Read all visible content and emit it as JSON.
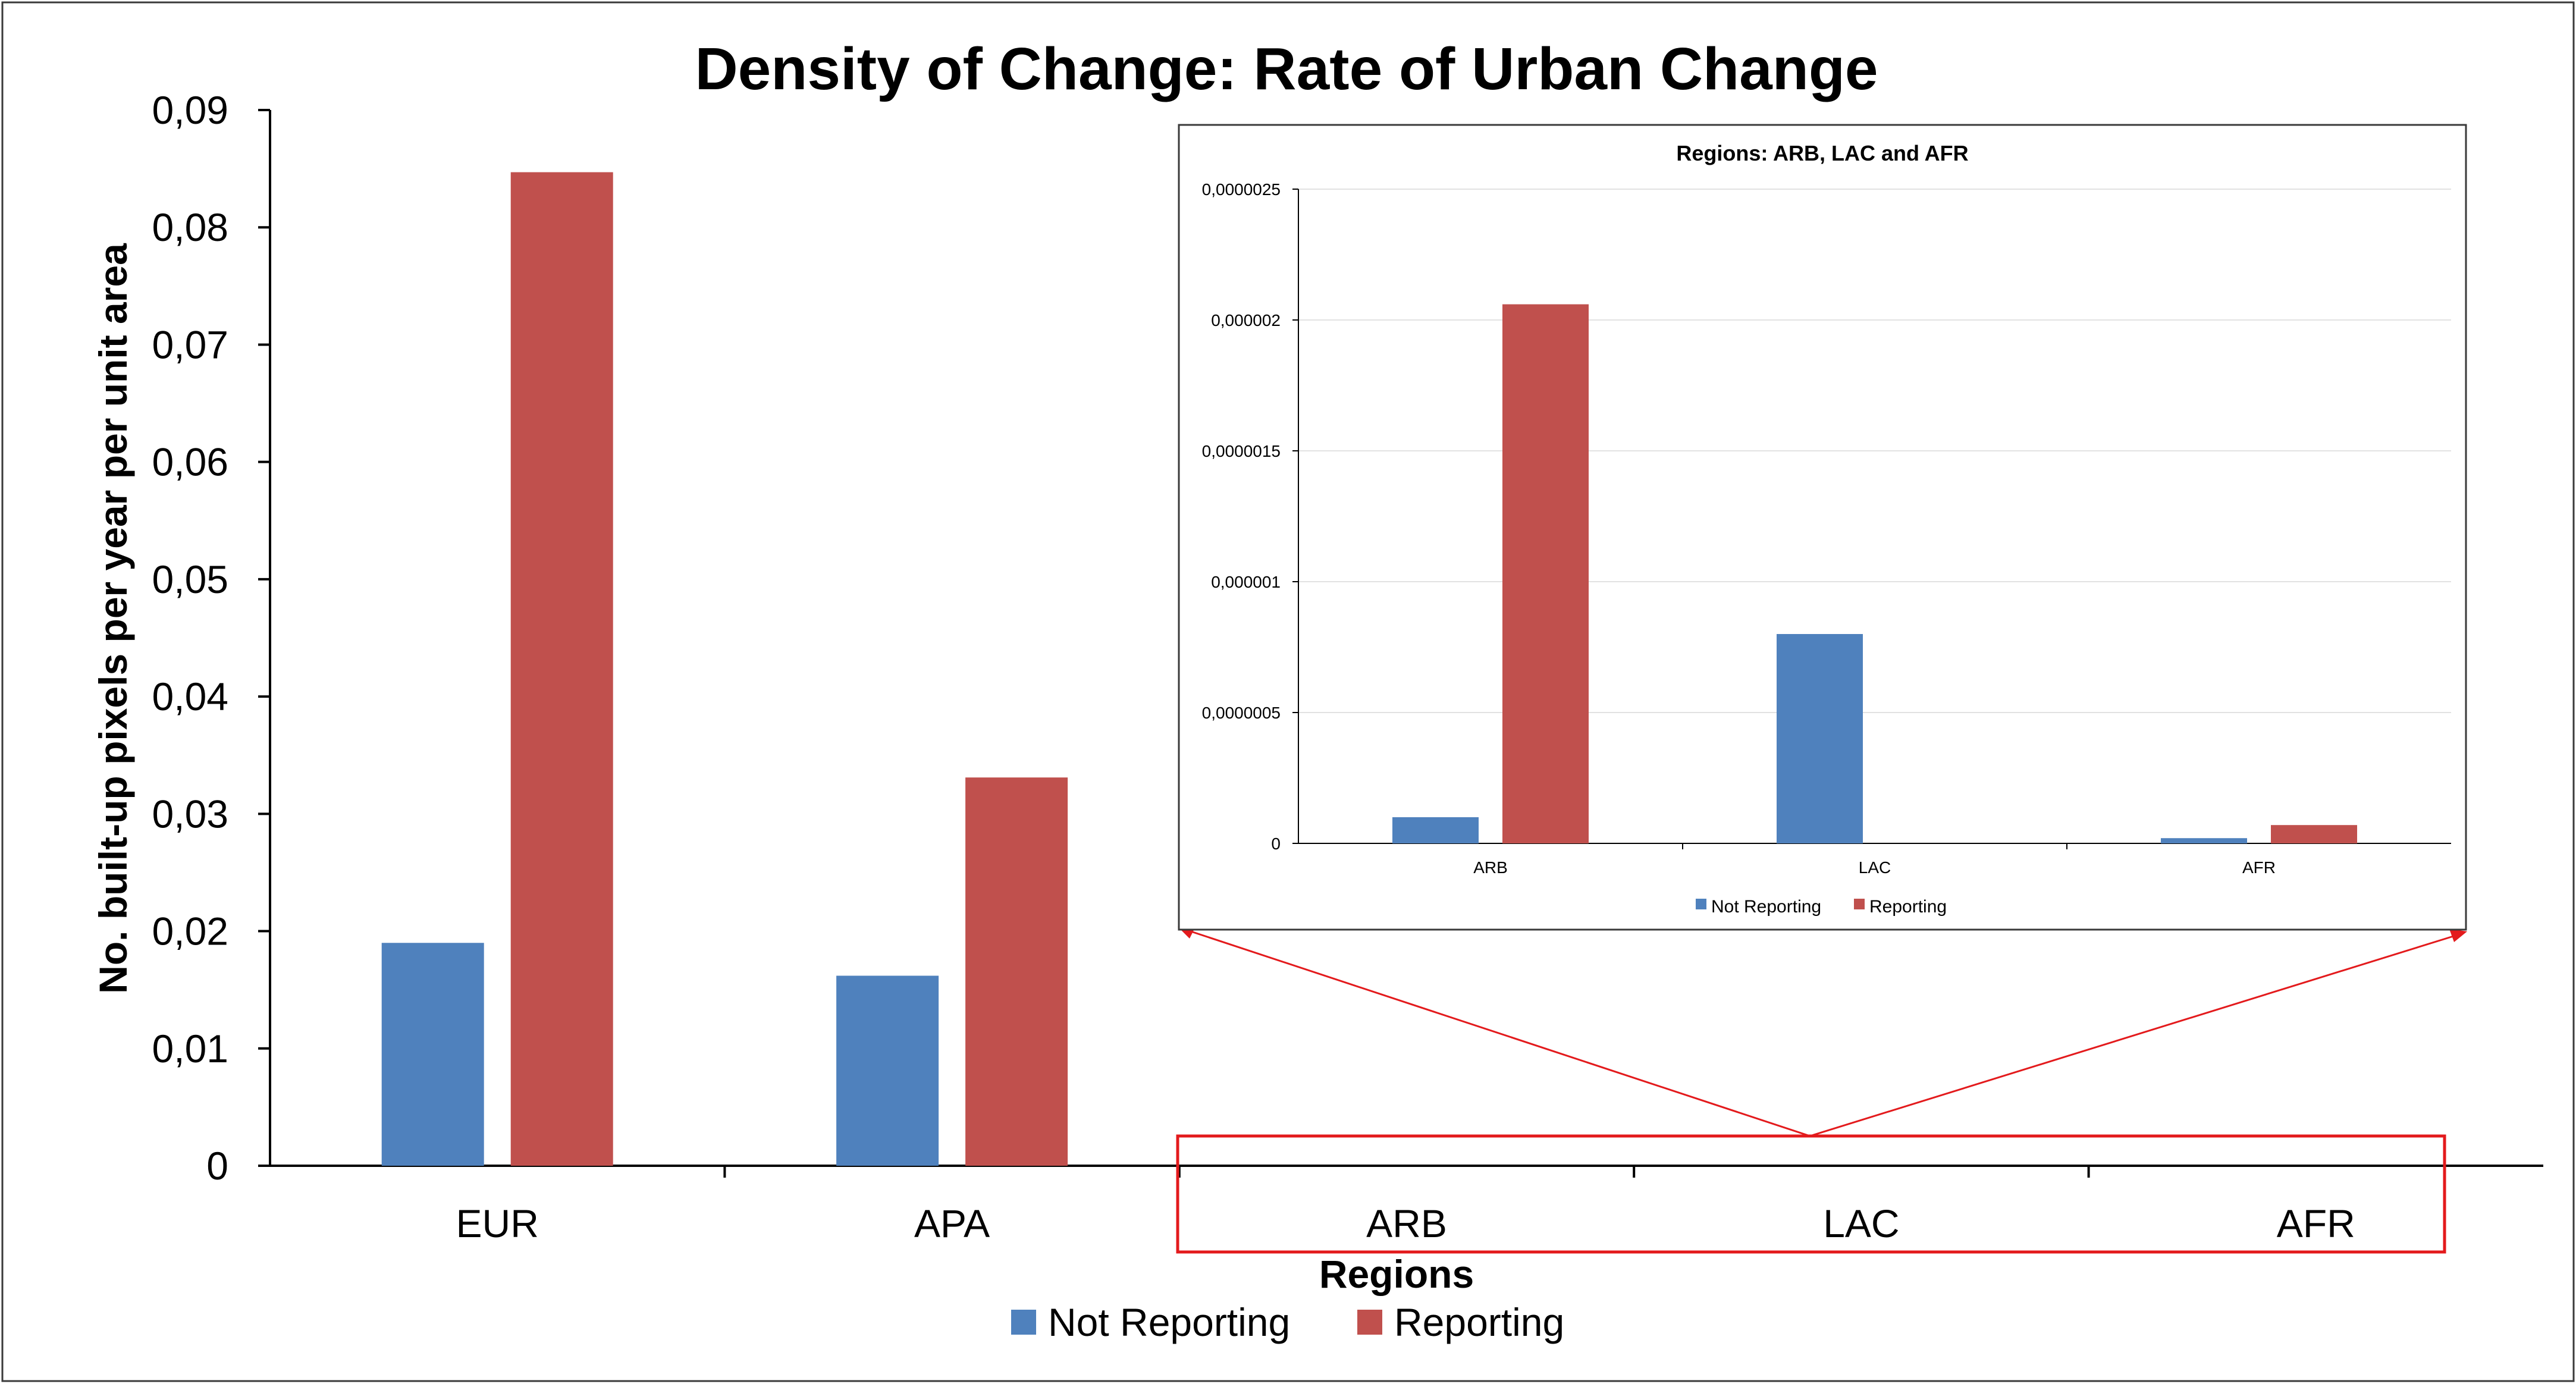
{
  "chart_data": [
    {
      "type": "bar",
      "title": "Density of Change: Rate of Urban Change",
      "xlabel": "Regions",
      "ylabel": "No. built-up pixels per year per unit area",
      "categories": [
        "EUR",
        "APA",
        "ARB",
        "LAC",
        "AFR"
      ],
      "ylim": [
        0,
        0.09
      ],
      "yticks": [
        "0",
        "0,01",
        "0,02",
        "0,03",
        "0,04",
        "0,05",
        "0,06",
        "0,07",
        "0,08",
        "0,09"
      ],
      "series": [
        {
          "name": "Not Reporting",
          "color": "#4f81bd",
          "values": [
            0.019,
            0.0162,
            1e-07,
            8e-07,
            2e-08
          ]
        },
        {
          "name": "Reporting",
          "color": "#c0504d",
          "values": [
            0.0847,
            0.0331,
            2.06e-06,
            0,
            7e-08
          ]
        }
      ],
      "legend": "bottom-center",
      "grid": false,
      "highlighted_categories": [
        "ARB",
        "LAC",
        "AFR"
      ]
    },
    {
      "type": "bar",
      "title": "Regions: ARB, LAC and AFR",
      "categories": [
        "ARB",
        "LAC",
        "AFR"
      ],
      "ylim": [
        0,
        2.5e-06
      ],
      "yticks": [
        "0",
        "0,0000005",
        "0,000001",
        "0,0000015",
        "0,000002",
        "0,0000025"
      ],
      "series": [
        {
          "name": "Not Reporting",
          "color": "#4f81bd",
          "values": [
            1e-07,
            8e-07,
            2e-08
          ]
        },
        {
          "name": "Reporting",
          "color": "#c0504d",
          "values": [
            2.06e-06,
            0,
            7e-08
          ]
        }
      ],
      "legend": "bottom-center",
      "grid": true
    }
  ],
  "colors": {
    "not_reporting": "#4f81bd",
    "reporting": "#c0504d",
    "highlight": "#e31a1c"
  }
}
